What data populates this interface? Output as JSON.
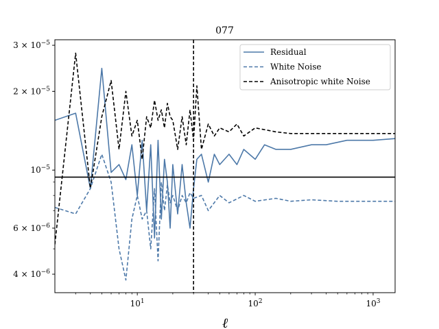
{
  "chart_data": {
    "type": "line",
    "title": "077",
    "xlabel": "ℓ",
    "ylabel": "",
    "xscale": "log",
    "yscale": "log",
    "xlim": [
      2,
      1536
    ],
    "ylim": [
      3.4e-06,
      3.15e-05
    ],
    "grid": false,
    "legend_position": "top-right",
    "x_ticks": [
      {
        "value": 10,
        "label": "10",
        "exp": "1"
      },
      {
        "value": 100,
        "label": "10",
        "exp": "2"
      },
      {
        "value": 1000,
        "label": "10",
        "exp": "3"
      }
    ],
    "y_ticks": [
      {
        "value": 4e-06,
        "mant": "4 × 10",
        "exp": "−6"
      },
      {
        "value": 6e-06,
        "mant": "6 × 10",
        "exp": "−6"
      },
      {
        "value": 1e-05,
        "mant": "10",
        "exp": "−5"
      },
      {
        "value": 2e-05,
        "mant": "2 × 10",
        "exp": "−5"
      },
      {
        "value": 3e-05,
        "mant": "3 × 10",
        "exp": "−5"
      }
    ],
    "reference_lines": [
      {
        "orientation": "vertical",
        "value": 30,
        "style": "dashed",
        "color": "#000000"
      },
      {
        "orientation": "horizontal",
        "value": 9.4e-06,
        "style": "solid",
        "color": "#000000"
      }
    ],
    "series": [
      {
        "name": "Residual",
        "color": "#4c78a8",
        "style": "solid",
        "points": [
          [
            2,
            1.55e-05
          ],
          [
            3,
            1.65e-05
          ],
          [
            4,
            8.5e-06
          ],
          [
            5,
            2.45e-05
          ],
          [
            6,
            9.8e-06
          ],
          [
            7,
            1.05e-05
          ],
          [
            8,
            9.2e-06
          ],
          [
            9,
            1.25e-05
          ],
          [
            10,
            8e-06
          ],
          [
            11,
            1.3e-05
          ],
          [
            12,
            7e-06
          ],
          [
            13,
            1.25e-05
          ],
          [
            14,
            5.5e-06
          ],
          [
            15,
            1.3e-05
          ],
          [
            16,
            6.5e-06
          ],
          [
            17,
            1.1e-05
          ],
          [
            18,
            9e-06
          ],
          [
            19,
            6e-06
          ],
          [
            20,
            1.05e-05
          ],
          [
            22,
            6.8e-06
          ],
          [
            24,
            1.05e-05
          ],
          [
            26,
            7.5e-06
          ],
          [
            28,
            6e-06
          ],
          [
            30,
            8.5e-06
          ],
          [
            32,
            1.1e-05
          ],
          [
            35,
            1.15e-05
          ],
          [
            40,
            9e-06
          ],
          [
            45,
            1.15e-05
          ],
          [
            50,
            1.05e-05
          ],
          [
            60,
            1.15e-05
          ],
          [
            70,
            1.05e-05
          ],
          [
            80,
            1.2e-05
          ],
          [
            100,
            1.1e-05
          ],
          [
            120,
            1.25e-05
          ],
          [
            150,
            1.2e-05
          ],
          [
            200,
            1.2e-05
          ],
          [
            300,
            1.25e-05
          ],
          [
            400,
            1.25e-05
          ],
          [
            600,
            1.3e-05
          ],
          [
            800,
            1.3e-05
          ],
          [
            1000,
            1.3e-05
          ],
          [
            1536,
            1.32e-05
          ]
        ]
      },
      {
        "name": "White Noise",
        "color": "#4c78a8",
        "style": "dashed",
        "points": [
          [
            2,
            7.2e-06
          ],
          [
            3,
            6.8e-06
          ],
          [
            4,
            8.5e-06
          ],
          [
            5,
            1.15e-05
          ],
          [
            6,
            9e-06
          ],
          [
            7,
            5e-06
          ],
          [
            8,
            3.8e-06
          ],
          [
            9,
            6.5e-06
          ],
          [
            10,
            8e-06
          ],
          [
            11,
            6.5e-06
          ],
          [
            12,
            7e-06
          ],
          [
            13,
            5e-06
          ],
          [
            14,
            8.5e-06
          ],
          [
            15,
            4.5e-06
          ],
          [
            16,
            9e-06
          ],
          [
            17,
            7e-06
          ],
          [
            18,
            8.8e-06
          ],
          [
            19,
            7.5e-06
          ],
          [
            20,
            8e-06
          ],
          [
            22,
            7e-06
          ],
          [
            24,
            8e-06
          ],
          [
            26,
            7.5e-06
          ],
          [
            28,
            8.2e-06
          ],
          [
            30,
            7.8e-06
          ],
          [
            35,
            8e-06
          ],
          [
            40,
            7e-06
          ],
          [
            50,
            8e-06
          ],
          [
            60,
            7.5e-06
          ],
          [
            80,
            8e-06
          ],
          [
            100,
            7.6e-06
          ],
          [
            150,
            7.8e-06
          ],
          [
            200,
            7.6e-06
          ],
          [
            300,
            7.7e-06
          ],
          [
            500,
            7.6e-06
          ],
          [
            800,
            7.6e-06
          ],
          [
            1000,
            7.6e-06
          ],
          [
            1536,
            7.6e-06
          ]
        ]
      },
      {
        "name": "Anisotropic white Noise",
        "color": "#000000",
        "style": "dashed",
        "points": [
          [
            2,
            5.2e-06
          ],
          [
            3,
            2.8e-05
          ],
          [
            4,
            8.5e-06
          ],
          [
            5,
            1.6e-05
          ],
          [
            6,
            2.2e-05
          ],
          [
            7,
            1.2e-05
          ],
          [
            8,
            2e-05
          ],
          [
            9,
            1.35e-05
          ],
          [
            10,
            1.55e-05
          ],
          [
            11,
            1.1e-05
          ],
          [
            12,
            1.6e-05
          ],
          [
            13,
            1.45e-05
          ],
          [
            14,
            1.85e-05
          ],
          [
            15,
            1.55e-05
          ],
          [
            16,
            1.7e-05
          ],
          [
            17,
            1.45e-05
          ],
          [
            18,
            1.8e-05
          ],
          [
            19,
            1.6e-05
          ],
          [
            20,
            1.55e-05
          ],
          [
            22,
            1.2e-05
          ],
          [
            24,
            1.6e-05
          ],
          [
            26,
            1.25e-05
          ],
          [
            28,
            1.7e-05
          ],
          [
            30,
            1.3e-05
          ],
          [
            32,
            2.1e-05
          ],
          [
            35,
            1.2e-05
          ],
          [
            40,
            1.5e-05
          ],
          [
            45,
            1.35e-05
          ],
          [
            50,
            1.45e-05
          ],
          [
            60,
            1.4e-05
          ],
          [
            70,
            1.5e-05
          ],
          [
            80,
            1.35e-05
          ],
          [
            100,
            1.45e-05
          ],
          [
            150,
            1.4e-05
          ],
          [
            200,
            1.38e-05
          ],
          [
            300,
            1.38e-05
          ],
          [
            500,
            1.38e-05
          ],
          [
            800,
            1.38e-05
          ],
          [
            1000,
            1.38e-05
          ],
          [
            1536,
            1.38e-05
          ]
        ]
      }
    ],
    "colors": {
      "residual": "#4c78a8",
      "anisotropic": "#000000",
      "axes": "#000000",
      "background": "#ffffff"
    }
  }
}
